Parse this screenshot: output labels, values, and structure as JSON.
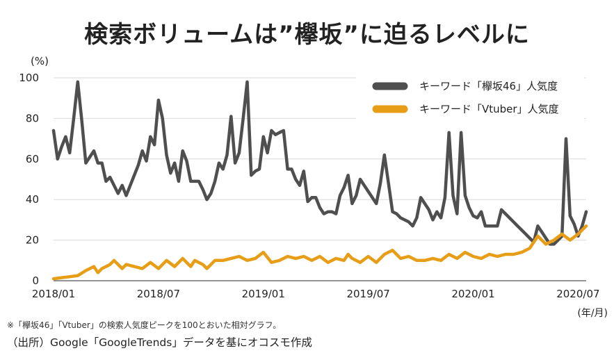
{
  "chart_data": {
    "type": "line",
    "title": "検索ボリュームは”欅坂”に迫るレベルに",
    "ylabel": "(%)",
    "xunit": "(年/月)",
    "ylim": [
      0,
      100
    ],
    "yticks": [
      0,
      20,
      40,
      60,
      80,
      100
    ],
    "xticks": [
      "2018/01",
      "2018/07",
      "2019/01",
      "2019/07",
      "2020/01",
      "2020/07"
    ],
    "x_range": [
      0,
      132
    ],
    "xtick_positions": [
      0,
      26,
      52,
      78,
      104,
      130
    ],
    "note": "※「欅坂46」「Vtuber」の検索人気度ピークを100とおいた相対グラフ。",
    "source": "（出所）Google「GoogleTrends」データを基にオコスモ作成",
    "series": [
      {
        "name": "キーワード「欅坂46」人気度",
        "color": "#4f4f4f",
        "x": [
          0,
          1,
          2,
          3,
          4,
          5,
          6,
          7,
          8,
          9,
          10,
          11,
          12,
          13,
          14,
          15,
          16,
          17,
          18,
          19,
          20,
          21,
          22,
          23,
          24,
          25,
          26,
          27,
          28,
          29,
          30,
          31,
          32,
          33,
          34,
          35,
          36,
          37,
          38,
          39,
          40,
          41,
          42,
          43,
          44,
          45,
          46,
          47,
          48,
          49,
          50,
          51,
          52,
          53,
          54,
          55,
          56,
          57,
          58,
          59,
          60,
          61,
          62,
          63,
          64,
          65,
          66,
          67,
          68,
          69,
          70,
          71,
          72,
          73,
          74,
          75,
          76,
          77,
          78,
          79,
          80,
          81,
          82,
          83,
          84,
          85,
          86,
          87,
          88,
          89,
          90,
          91,
          92,
          93,
          94,
          95,
          96,
          97,
          98,
          99,
          100,
          101,
          102,
          103,
          104,
          105,
          106,
          107,
          108,
          109,
          110,
          111,
          112,
          113,
          114,
          115,
          116,
          117,
          118,
          119,
          120,
          121,
          122,
          123,
          124,
          125,
          126,
          127,
          128,
          129,
          130,
          131,
          132
        ],
        "values": [
          74,
          60,
          66,
          71,
          63,
          80,
          98,
          79,
          58,
          61,
          64,
          58,
          58,
          49,
          51,
          47,
          43,
          47,
          42,
          47,
          52,
          57,
          64,
          59,
          71,
          67,
          89,
          80,
          62,
          53,
          58,
          49,
          64,
          59,
          49,
          49,
          49,
          45,
          40,
          43,
          49,
          58,
          55,
          62,
          81,
          58,
          63,
          80,
          98,
          52,
          54,
          55,
          71,
          63,
          74,
          72,
          73,
          74,
          55,
          55,
          50,
          47,
          54,
          39,
          41,
          41,
          36,
          33,
          34,
          34,
          33,
          42,
          46,
          52,
          38,
          42,
          50,
          47,
          44,
          41,
          38,
          48,
          62,
          48,
          34,
          33,
          31,
          30,
          29,
          27,
          31,
          41,
          38,
          35,
          30,
          34,
          31,
          41,
          73,
          42,
          33,
          73,
          42,
          36,
          32,
          31,
          34,
          27,
          27,
          27,
          27,
          35,
          33,
          31,
          29,
          27,
          25,
          23,
          21,
          19,
          27,
          24,
          21,
          18,
          18,
          20,
          22,
          70,
          32,
          28,
          22,
          27,
          34
        ]
      },
      {
        "name": "キーワード「Vtuber」人気度",
        "color": "#e89d17",
        "x": [
          0,
          2,
          4,
          6,
          8,
          10,
          11,
          12,
          13,
          14,
          15,
          17,
          18,
          20,
          22,
          24,
          26,
          28,
          30,
          32,
          34,
          35,
          36,
          37,
          38,
          40,
          42,
          44,
          46,
          48,
          50,
          52,
          54,
          56,
          58,
          60,
          62,
          64,
          66,
          68,
          70,
          72,
          73,
          74,
          76,
          78,
          80,
          82,
          84,
          86,
          88,
          90,
          92,
          94,
          96,
          98,
          100,
          102,
          104,
          106,
          108,
          110,
          112,
          114,
          116,
          118,
          120,
          122,
          124,
          126,
          128,
          130,
          132
        ],
        "values": [
          1,
          1.5,
          2,
          2.5,
          5,
          7,
          4,
          6,
          7,
          8,
          10,
          6,
          8,
          7,
          6,
          9,
          6,
          10,
          7,
          11,
          7,
          10,
          9,
          8,
          6,
          10,
          10,
          11,
          12,
          10,
          11,
          14,
          9,
          10,
          12,
          11,
          12,
          10,
          12,
          9,
          11,
          10,
          13,
          11,
          9,
          12,
          9,
          13,
          15,
          11,
          12,
          10,
          10,
          11,
          10,
          13,
          11,
          14,
          12,
          11,
          13,
          12,
          13,
          13,
          14,
          16,
          22,
          18,
          20,
          23,
          20,
          23,
          27
        ]
      }
    ]
  }
}
